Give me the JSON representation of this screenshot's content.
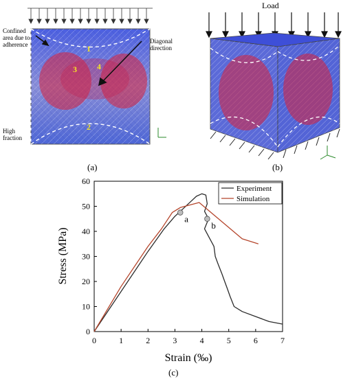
{
  "panel_a": {
    "annotations": {
      "confined_line1": "Confined",
      "confined_line2": "area due to",
      "confined_line3": "adherence",
      "diagonal_line1": "Diagonal",
      "diagonal_line2": "direction",
      "high_line1": "High",
      "high_line2": "fraction"
    },
    "region_numbers": [
      "1",
      "3",
      "4",
      "2"
    ],
    "caption": "(a)"
  },
  "panel_b": {
    "load_label": "Load",
    "caption": "(b)"
  },
  "panel_c": {
    "caption": "(c)"
  },
  "colors": {
    "experiment": "#2b2b2b",
    "simulation": "#b5452b",
    "mesh_blue": "#5a6fd8",
    "mesh_red": "#d8203a"
  },
  "chart_data": {
    "type": "line",
    "title": "",
    "xlabel": "Strain (‰)",
    "ylabel": "Stress (MPa)",
    "xlim": [
      0,
      7
    ],
    "ylim": [
      0,
      60
    ],
    "xticks": [
      "0",
      "1",
      "2",
      "3",
      "4",
      "5",
      "6",
      "7"
    ],
    "yticks": [
      "0",
      "10",
      "20",
      "30",
      "40",
      "50",
      "60"
    ],
    "legend_position": "top-right",
    "series": [
      {
        "name": "Experiment",
        "points": [
          [
            0,
            0
          ],
          [
            1,
            16
          ],
          [
            2,
            32
          ],
          [
            2.6,
            41
          ],
          [
            3.0,
            46
          ],
          [
            3.3,
            49
          ],
          [
            3.6,
            52
          ],
          [
            3.8,
            54
          ],
          [
            4.0,
            55
          ],
          [
            4.15,
            54.5
          ],
          [
            4.2,
            51
          ],
          [
            4.1,
            48
          ],
          [
            4.25,
            45
          ],
          [
            4.1,
            41
          ],
          [
            4.3,
            37
          ],
          [
            4.45,
            34
          ],
          [
            4.5,
            30
          ],
          [
            4.6,
            27
          ],
          [
            4.75,
            23
          ],
          [
            4.85,
            20
          ],
          [
            4.95,
            17
          ],
          [
            5.05,
            14
          ],
          [
            5.2,
            10
          ],
          [
            5.5,
            8
          ],
          [
            6.0,
            6
          ],
          [
            6.5,
            4
          ],
          [
            7.0,
            3
          ]
        ]
      },
      {
        "name": "Simulation",
        "points": [
          [
            0,
            0
          ],
          [
            1,
            18
          ],
          [
            2,
            34
          ],
          [
            2.5,
            41
          ],
          [
            2.9,
            47.5
          ],
          [
            3.2,
            49.5
          ],
          [
            3.9,
            51.5
          ],
          [
            5.5,
            37
          ],
          [
            6.1,
            35
          ]
        ]
      }
    ],
    "annotations": [
      {
        "label": "a",
        "x": 3.2,
        "y": 47.5
      },
      {
        "label": "b",
        "x": 4.2,
        "y": 45
      }
    ]
  }
}
